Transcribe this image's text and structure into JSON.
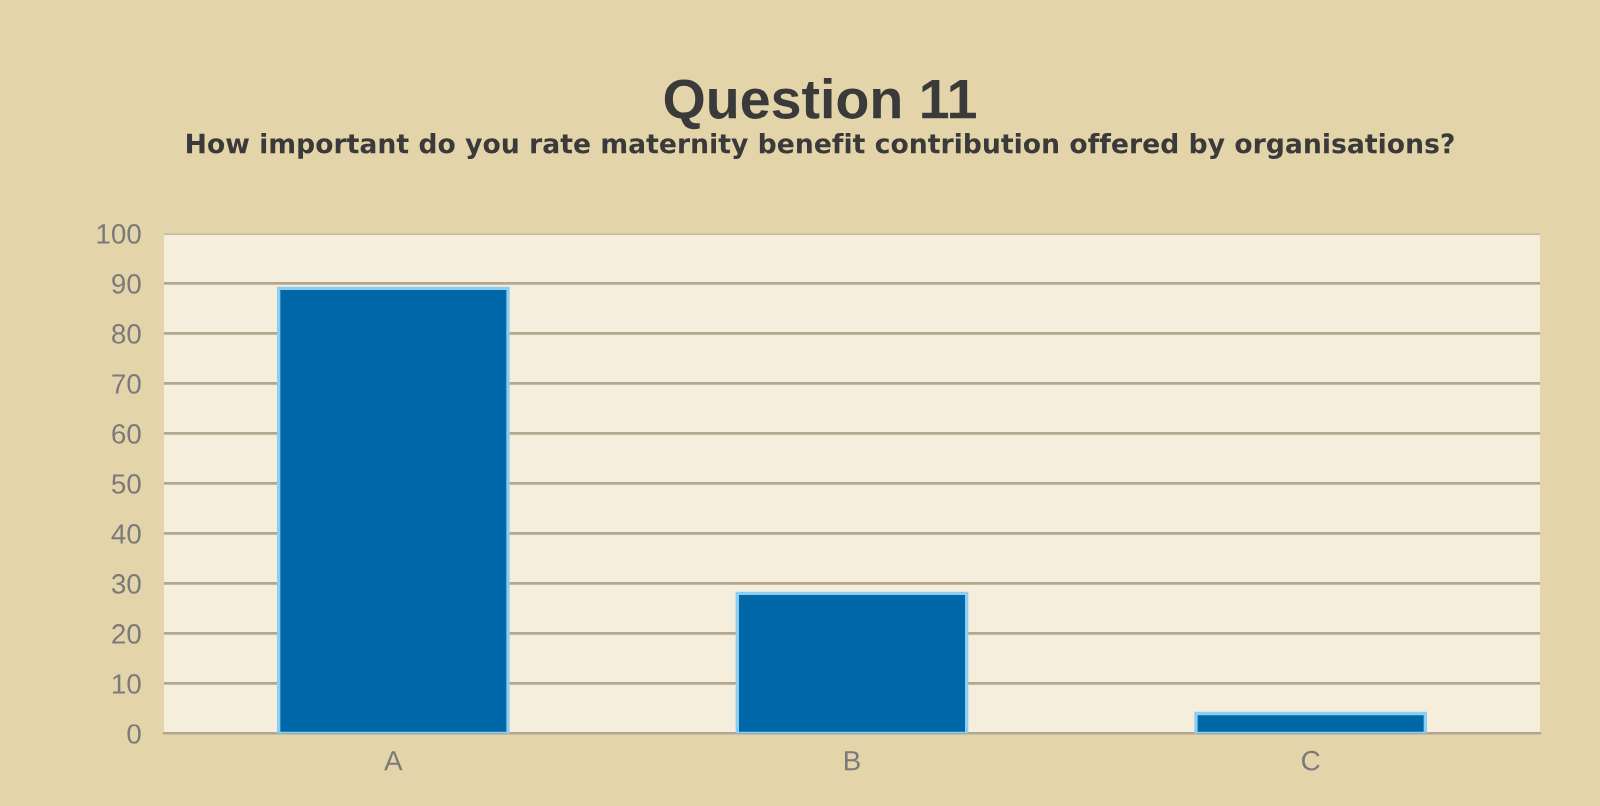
{
  "chart_data": {
    "type": "bar",
    "title": "Question 11",
    "subtitle": "How important do you rate maternity benefit contribution offered by organisations?",
    "categories": [
      "A",
      "B",
      "C"
    ],
    "values": [
      89,
      28,
      4
    ],
    "color": "#0068a8",
    "ylim": [
      0,
      100
    ],
    "yticks": [
      0,
      10,
      20,
      30,
      40,
      50,
      60,
      70,
      80,
      90,
      100
    ],
    "grid": "y"
  }
}
